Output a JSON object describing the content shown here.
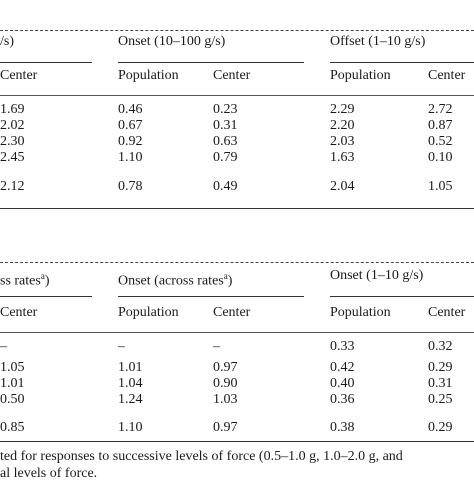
{
  "table1": {
    "group_headers": [
      "/s)",
      "Onset (10–100 g/s)",
      "Offset (1–10 g/s)"
    ],
    "col_headers": [
      "Center",
      "Population",
      "Center",
      "Population",
      "Center"
    ],
    "rows": [
      [
        "1.69",
        "0.46",
        "0.23",
        "2.29",
        "2.72"
      ],
      [
        "2.02",
        "0.67",
        "0.31",
        "2.20",
        "0.87"
      ],
      [
        "2.30",
        "0.92",
        "0.63",
        "2.03",
        "0.52"
      ],
      [
        "2.45",
        "1.10",
        "0.79",
        "1.63",
        "0.10"
      ]
    ],
    "summary": [
      "2.12",
      "0.78",
      "0.49",
      "2.04",
      "1.05"
    ]
  },
  "table2": {
    "group_headers": [
      "ss rates",
      "Onset (across rates",
      "Onset (1–10 g/s)"
    ],
    "superscripts": [
      "a",
      "a"
    ],
    "col_headers": [
      "Center",
      "Population",
      "Center",
      "Population",
      "Center"
    ],
    "rows": [
      [
        "–",
        "–",
        "–",
        "0.33",
        "0.32"
      ],
      [
        "1.05",
        "1.01",
        "0.97",
        "0.42",
        "0.29"
      ],
      [
        "1.01",
        "1.04",
        "0.90",
        "0.40",
        "0.31"
      ],
      [
        "0.50",
        "1.24",
        "1.03",
        "0.36",
        "0.25"
      ]
    ],
    "summary": [
      "0.85",
      "1.10",
      "0.97",
      "0.38",
      "0.29"
    ]
  },
  "footnote": {
    "line1": "ted for responses to successive levels of force (0.5–1.0 g, 1.0–2.0 g, and",
    "line2": "al levels of force."
  }
}
